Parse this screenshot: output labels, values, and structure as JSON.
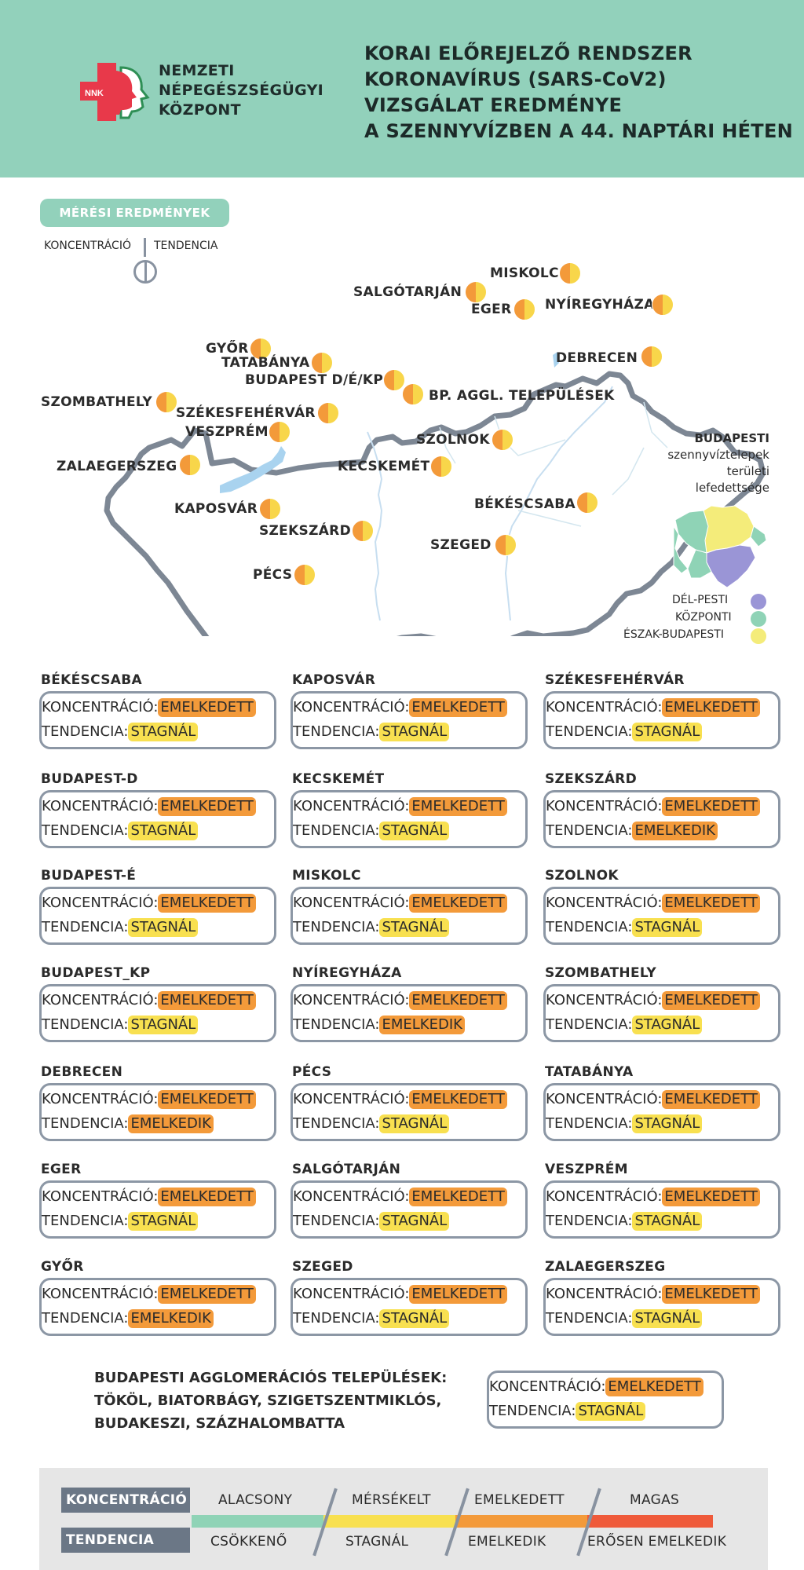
{
  "header": {
    "logo_text": "NNK",
    "org_lines": [
      "NEMZETI",
      "NÉPEGÉSZSÉGÜGYI",
      "KÖZPONT"
    ],
    "title_lines": [
      "KORAI ELŐREJELZŐ RENDSZER",
      "KORONAVÍRUS (SARS-CoV2)",
      "VIZSGÁLAT EREDMÉNYE",
      "A SZENNYVÍZBEN A 44. NAPTÁRI HÉTEN"
    ]
  },
  "map": {
    "section_label": "MÉRÉSI EREDMÉNYEK",
    "legend_concentration": "KONCENTRÁCIÓ",
    "legend_trend": "TENDENCIA",
    "cities": [
      "MISKOLC",
      "SALGÓTARJÁN",
      "EGER",
      "NYÍREGYHÁZA",
      "GYŐR",
      "TATABÁNYA",
      "BUDAPEST D/É/KP",
      "DEBRECEN",
      "BP. AGGL. TELEPÜLÉSEK",
      "SZOMBATHELY",
      "SZÉKESFEHÉRVÁR",
      "VESZPRÉM",
      "SZOLNOK",
      "ZALAEGERSZEG",
      "KECSKEMÉT",
      "BÉKÉSCSABA",
      "KAPOSVÁR",
      "SZEKSZÁRD",
      "SZEGED",
      "PÉCS"
    ],
    "colors": {
      "concentration": "#f39a3a",
      "trend_stagnal": "#f8d64a"
    },
    "bp_legend_lines": [
      "BUDAPESTI",
      "szennyvíztelepek",
      "területi",
      "lefedettsége"
    ],
    "bp_keys": [
      {
        "label": "DÉL-PESTI",
        "color": "#9a95d6"
      },
      {
        "label": "KÖZPONTI",
        "color": "#8fd3b6"
      },
      {
        "label": "ÉSZAK-BUDAPESTI",
        "color": "#f4ec7a"
      }
    ]
  },
  "labels": {
    "concentration": "KONCENTRÁCIÓ:",
    "trend": "TENDENCIA:"
  },
  "cards": [
    {
      "name": "BÉKÉSCSABA",
      "conc": "EMELKEDETT",
      "trend": "STAGNÁL"
    },
    {
      "name": "KAPOSVÁR",
      "conc": "EMELKEDETT",
      "trend": "STAGNÁL"
    },
    {
      "name": "SZÉKESFEHÉRVÁR",
      "conc": "EMELKEDETT",
      "trend": "STAGNÁL"
    },
    {
      "name": "BUDAPEST-D",
      "conc": "EMELKEDETT",
      "trend": "STAGNÁL"
    },
    {
      "name": "KECSKEMÉT",
      "conc": "EMELKEDETT",
      "trend": "STAGNÁL"
    },
    {
      "name": "SZEKSZÁRD",
      "conc": "EMELKEDETT",
      "trend": "EMELKEDIK"
    },
    {
      "name": "BUDAPEST-É",
      "conc": "EMELKEDETT",
      "trend": "STAGNÁL"
    },
    {
      "name": "MISKOLC",
      "conc": "EMELKEDETT",
      "trend": "STAGNÁL"
    },
    {
      "name": "SZOLNOK",
      "conc": "EMELKEDETT",
      "trend": "STAGNÁL"
    },
    {
      "name": "BUDAPEST_KP",
      "conc": "EMELKEDETT",
      "trend": "STAGNÁL"
    },
    {
      "name": "NYÍREGYHÁZA",
      "conc": "EMELKEDETT",
      "trend": "EMELKEDIK"
    },
    {
      "name": "SZOMBATHELY",
      "conc": "EMELKEDETT",
      "trend": "STAGNÁL"
    },
    {
      "name": "DEBRECEN",
      "conc": "EMELKEDETT",
      "trend": "EMELKEDIK"
    },
    {
      "name": "PÉCS",
      "conc": "EMELKEDETT",
      "trend": "STAGNÁL"
    },
    {
      "name": "TATABÁNYA",
      "conc": "EMELKEDETT",
      "trend": "STAGNÁL"
    },
    {
      "name": "EGER",
      "conc": "EMELKEDETT",
      "trend": "STAGNÁL"
    },
    {
      "name": "SALGÓTARJÁN",
      "conc": "EMELKEDETT",
      "trend": "STAGNÁL"
    },
    {
      "name": "VESZPRÉM",
      "conc": "EMELKEDETT",
      "trend": "STAGNÁL"
    },
    {
      "name": "GYŐR",
      "conc": "EMELKEDETT",
      "trend": "EMELKEDIK"
    },
    {
      "name": "SZEGED",
      "conc": "EMELKEDETT",
      "trend": "STAGNÁL"
    },
    {
      "name": "ZALAEGERSZEG",
      "conc": "EMELKEDETT",
      "trend": "STAGNÁL"
    }
  ],
  "agglomeration": {
    "lines": [
      "BUDAPESTI AGGLOMERÁCIÓS TELEPÜLÉSEK:",
      "TÖKÖL, BIATORBÁGY, SZIGETSZENTMIKLÓS,",
      "BUDAKESZI, SZÁZHALOMBATTA"
    ],
    "conc": "EMELKEDETT",
    "trend": "STAGNÁL"
  },
  "legend": {
    "concentration_label": "KONCENTRÁCIÓ",
    "trend_label": "TENDENCIA",
    "conc_levels": [
      "ALACSONY",
      "MÉRSÉKELT",
      "EMELKEDETT",
      "MAGAS"
    ],
    "trend_levels": [
      "CSÖKKENŐ",
      "STAGNÁL",
      "EMELKEDIK",
      "ERŐSEN EMELKEDIK"
    ],
    "level_colors": [
      "#8fd3b6",
      "#f8e050",
      "#f39a3a",
      "#ef5a3a"
    ]
  }
}
